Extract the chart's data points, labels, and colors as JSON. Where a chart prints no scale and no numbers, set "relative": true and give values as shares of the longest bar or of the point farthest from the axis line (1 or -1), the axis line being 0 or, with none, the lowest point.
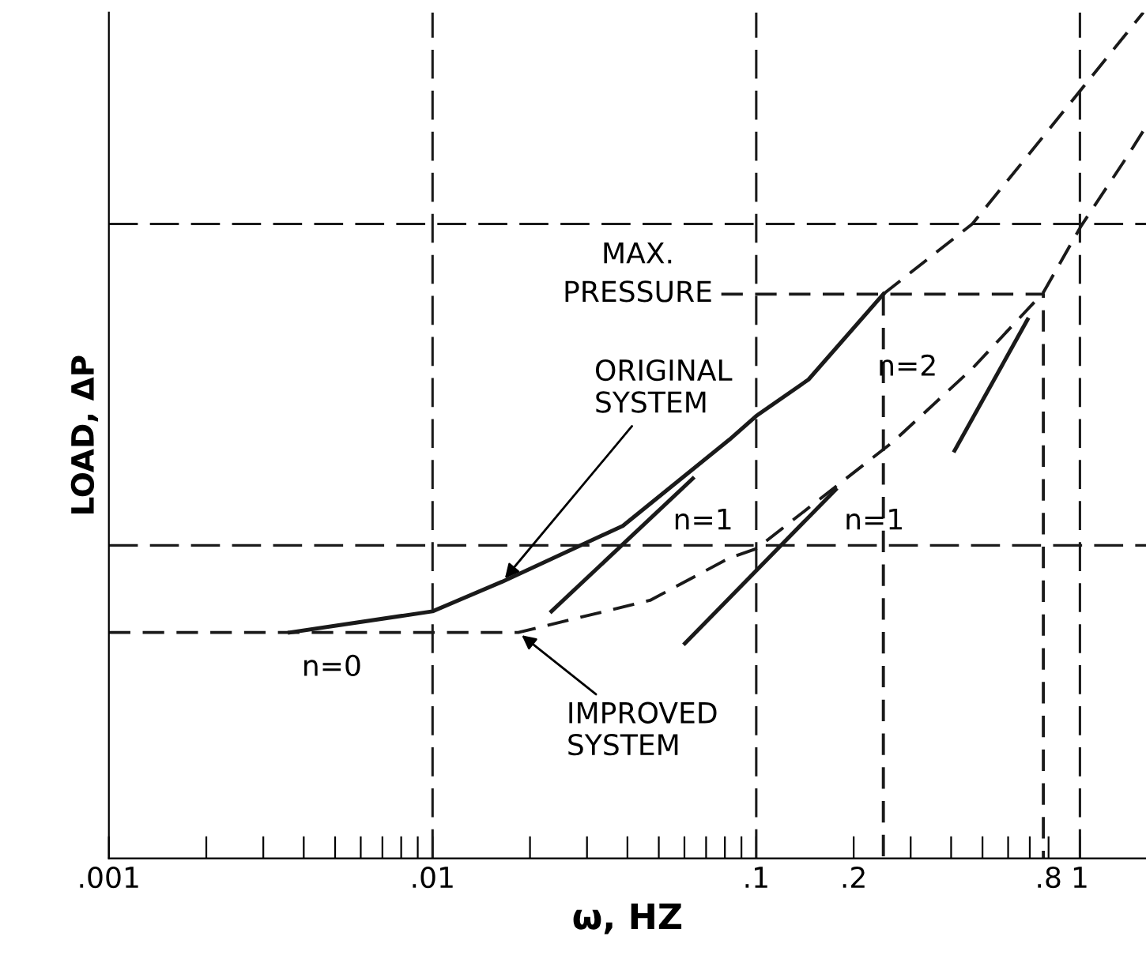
{
  "chart_data": {
    "type": "line",
    "xlabel": "ω, HZ",
    "ylabel": "LOAD, ΔP",
    "relative": true,
    "log": "x",
    "grid": false,
    "legend": false,
    "marker": "none",
    "xlim": [
      0.001,
      1.6
    ],
    "xticks": [
      {
        "value": 0.001,
        "label": ".001"
      },
      {
        "value": 0.002,
        "label": null
      },
      {
        "value": 0.003,
        "label": null
      },
      {
        "value": 0.004,
        "label": null
      },
      {
        "value": 0.005,
        "label": null
      },
      {
        "value": 0.006,
        "label": null
      },
      {
        "value": 0.007,
        "label": null
      },
      {
        "value": 0.008,
        "label": null
      },
      {
        "value": 0.009,
        "label": null
      },
      {
        "value": 0.01,
        "label": ".01"
      },
      {
        "value": 0.02,
        "label": null
      },
      {
        "value": 0.03,
        "label": null
      },
      {
        "value": 0.04,
        "label": null
      },
      {
        "value": 0.05,
        "label": null
      },
      {
        "value": 0.06,
        "label": null
      },
      {
        "value": 0.07,
        "label": null
      },
      {
        "value": 0.08,
        "label": null
      },
      {
        "value": 0.09,
        "label": null
      },
      {
        "value": 0.1,
        "label": ".1"
      },
      {
        "value": 0.2,
        "label": ".2"
      },
      {
        "value": 0.3,
        "label": null
      },
      {
        "value": 0.4,
        "label": null
      },
      {
        "value": 0.5,
        "label": null
      },
      {
        "value": 0.6,
        "label": null
      },
      {
        "value": 0.7,
        "label": null
      },
      {
        "value": 0.8,
        "label": ".8"
      },
      {
        "value": 1,
        "label": "1"
      }
    ],
    "series": [
      {
        "color": "#1a1a1a",
        "line_style": "solid",
        "x": [
          0.00362,
          0.01,
          0.0164,
          0.0387,
          0.0826,
          0.1,
          0.145,
          0.247
        ],
        "values": [
          0.267,
          0.292,
          0.327,
          0.393,
          0.495,
          0.523,
          0.566,
          0.667
        ]
      },
      {
        "color": "#1a1a1a",
        "line_style": "dashed",
        "x": [
          0.247,
          0.465,
          0.681,
          1.57
        ],
        "values": [
          0.667,
          0.75,
          0.828,
          1
        ]
      },
      {
        "color": "#1a1a1a",
        "line_style": "dashed",
        "x": [
          0.001,
          0.0184,
          0.047,
          0.0826,
          0.1,
          0.264,
          0.465,
          0.771,
          1.01,
          1.39,
          1.6
        ],
        "values": [
          0.267,
          0.267,
          0.305,
          0.355,
          0.366,
          0.492,
          0.579,
          0.669,
          0.748,
          0.828,
          0.865
        ]
      },
      {
        "color": "#1a1a1a",
        "line_style": "solid",
        "x": [
          0.0233,
          0.0637
        ],
        "values": [
          0.292,
          0.449
        ]
      },
      {
        "color": "#1a1a1a",
        "line_style": "solid",
        "x": [
          0.0602,
          0.176
        ],
        "values": [
          0.254,
          0.436
        ]
      },
      {
        "color": "#1a1a1a",
        "line_style": "solid",
        "x": [
          0.41,
          0.689
        ],
        "values": [
          0.482,
          0.637
        ]
      },
      {
        "color": "#1a1a1a",
        "line_style": "dashed",
        "x": [
          0.078,
          0.771,
          0.771
        ],
        "values": [
          0.667,
          0.667,
          0
        ]
      },
      {
        "color": "#1a1a1a",
        "line_style": "dashed",
        "x": [
          0.247,
          0.247
        ],
        "values": [
          0.667,
          0
        ]
      }
    ],
    "ref_lines": [
      {
        "axis": "x",
        "value": 0.01,
        "color": "#1a1a1a",
        "line_style": "dashed"
      },
      {
        "axis": "x",
        "value": 0.1,
        "color": "#1a1a1a",
        "line_style": "dashed"
      },
      {
        "axis": "x",
        "value": 1,
        "color": "#1a1a1a",
        "line_style": "dashed"
      },
      {
        "axis": "y",
        "value": 0.75,
        "color": "#1a1a1a",
        "line_style": "dashed"
      },
      {
        "axis": "y",
        "value": 0.37,
        "color": "#1a1a1a",
        "line_style": "dashed"
      }
    ],
    "annotations": [
      "MAX.\nPRESSURE",
      {
        "text": "ORIGINAL\nSYSTEM",
        "x": 0.0164,
        "y": 0.327
      },
      {
        "text": "IMPROVED\nSYSTEM",
        "x": 0.0184,
        "y": 0.267
      },
      "n=0",
      "n=1",
      "n=1",
      "n=2"
    ]
  }
}
